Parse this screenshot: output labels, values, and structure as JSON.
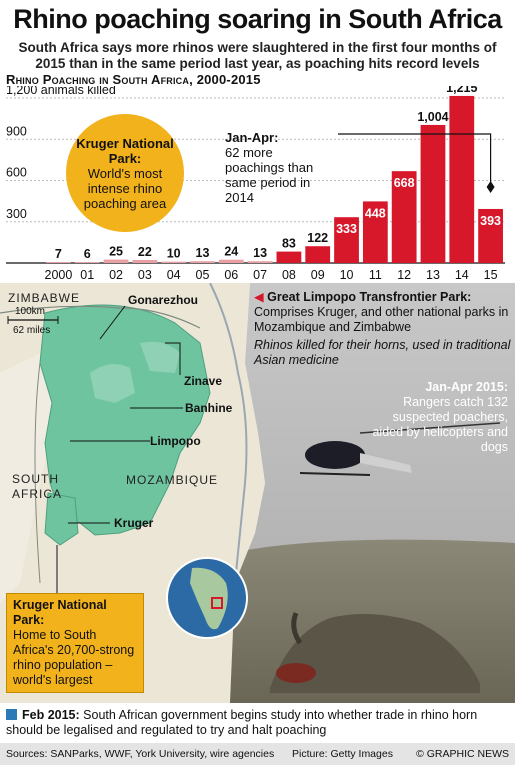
{
  "title": "Rhino poaching soaring in South Africa",
  "subtitle": "South Africa says more rhinos were slaughtered in the first four months of 2015 than in the same period last year, as poaching hits record levels",
  "chart_data": {
    "type": "bar",
    "title": "Rhino Poaching in South Africa, 2000-2015",
    "categories": [
      "2000",
      "01",
      "02",
      "03",
      "04",
      "05",
      "06",
      "07",
      "08",
      "09",
      "10",
      "11",
      "12",
      "13",
      "14",
      "15"
    ],
    "values": [
      7,
      6,
      25,
      22,
      10,
      13,
      24,
      13,
      83,
      122,
      333,
      448,
      668,
      1004,
      1215,
      393
    ],
    "value_labels": [
      "7",
      "6",
      "25",
      "22",
      "10",
      "13",
      "24",
      "13",
      "83",
      "122",
      "333",
      "448",
      "668",
      "1,004",
      "1,215",
      "393"
    ],
    "ylim": [
      0,
      1200
    ],
    "yticks": [
      300,
      600,
      900,
      1200
    ],
    "ytick_labels": [
      "300",
      "600",
      "900",
      "1,200 animals killed"
    ],
    "grid": true,
    "bar_color": "#d7182a",
    "low_bar_color": "#e8a0a5"
  },
  "callouts": {
    "kruger_np_title": "Kruger National Park:",
    "kruger_np_text": "World's most intense rhino poaching area",
    "janapr_title": "Jan-Apr:",
    "janapr_text": "62 more poachings than same period in 2014"
  },
  "map": {
    "labels": {
      "zimbabwe": "ZIMBABWE",
      "mozambique": "MOZAMBIQUE",
      "south_africa_1": "SOUTH",
      "south_africa_2": "AFRICA",
      "gonarezhou": "Gonarezhou",
      "zinave": "Zinave",
      "banhine": "Banhine",
      "limpopo": "Limpopo",
      "kruger": "Kruger"
    },
    "scale_km": "100km",
    "scale_miles": "62 miles"
  },
  "glt": {
    "title": "Great Limpopo Transfrontier Park:",
    "text": "Comprises Kruger, and other national parks in Mozambique and Zimbabwe",
    "note": "Rhinos killed for their horns, used in traditional Asian medicine"
  },
  "janapr2015": {
    "title": "Jan-Apr 2015:",
    "text": "Rangers catch 132 suspected poachers, aided by helicopters and dogs"
  },
  "kruger_box": {
    "title": "Kruger National Park:",
    "text": "Home to South Africa's 20,700-strong rhino population – world's largest"
  },
  "feb2015": {
    "title": "Feb 2015:",
    "text": "South African government begins study into whether trade in rhino horn should be legalised and regulated to try and halt poaching"
  },
  "footer": {
    "sources": "Sources: SANParks, WWF, York University, wire agencies",
    "picture": "Picture: Getty Images",
    "copyright": "© GRAPHIC NEWS"
  },
  "colors": {
    "accent_red": "#d7182a",
    "kruger_yellow": "#f2b21b",
    "park_green": "#6fc4a0",
    "blue_note": "#2a7ab8"
  }
}
